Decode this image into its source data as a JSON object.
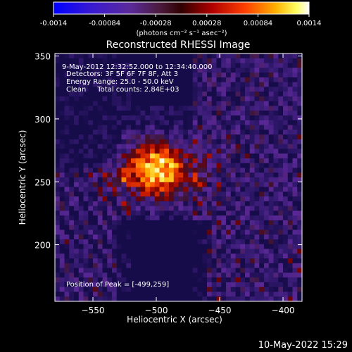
{
  "colorbar": {
    "tick_labels": [
      "-0.0014",
      "-0.00084",
      "-0.00028",
      "0.00028",
      "0.00084",
      "0.0014"
    ],
    "units_label": "(photons cm⁻² s⁻¹ asec⁻²)",
    "range": [
      -0.0014,
      0.0014
    ]
  },
  "plot": {
    "title": "Reconstructed RHESSI Image",
    "xlabel": "Heliocentric X (arcsec)",
    "ylabel": "Heliocentric Y (arcsec)",
    "xlim": [
      -580,
      -385
    ],
    "ylim": [
      155,
      352
    ],
    "x_ticks": [
      {
        "value": -550,
        "label": "−550"
      },
      {
        "value": -500,
        "label": "−500"
      },
      {
        "value": -450,
        "label": "−450"
      },
      {
        "value": -400,
        "label": "−400"
      }
    ],
    "y_ticks": [
      {
        "value": 200,
        "label": "200"
      },
      {
        "value": 250,
        "label": "250"
      },
      {
        "value": 300,
        "label": "300"
      },
      {
        "value": 350,
        "label": "350"
      }
    ]
  },
  "annotations": {
    "time_range": "9-May-2012 12:32:52.000 to 12:34:40.000",
    "detectors": "Detectors: 3F 5F 6F 7F 8F, Att 3",
    "energy_range": "Energy Range: 25.0 - 50.0 keV",
    "clean_counts": "Clean     Total counts: 2.84E+03",
    "peak_position": "Position of Peak = [-499,259]"
  },
  "timestamp": "10-May-2022 15:29",
  "image_data": {
    "peak": [
      -499,
      259
    ],
    "colormap_stops": [
      "#0000ff",
      "#1a0a6e",
      "#2b1550",
      "#4a1a6a",
      "#7a0a0a",
      "#c01a00",
      "#ff5a00",
      "#ffb000",
      "#ffff80",
      "#ffffff"
    ]
  }
}
